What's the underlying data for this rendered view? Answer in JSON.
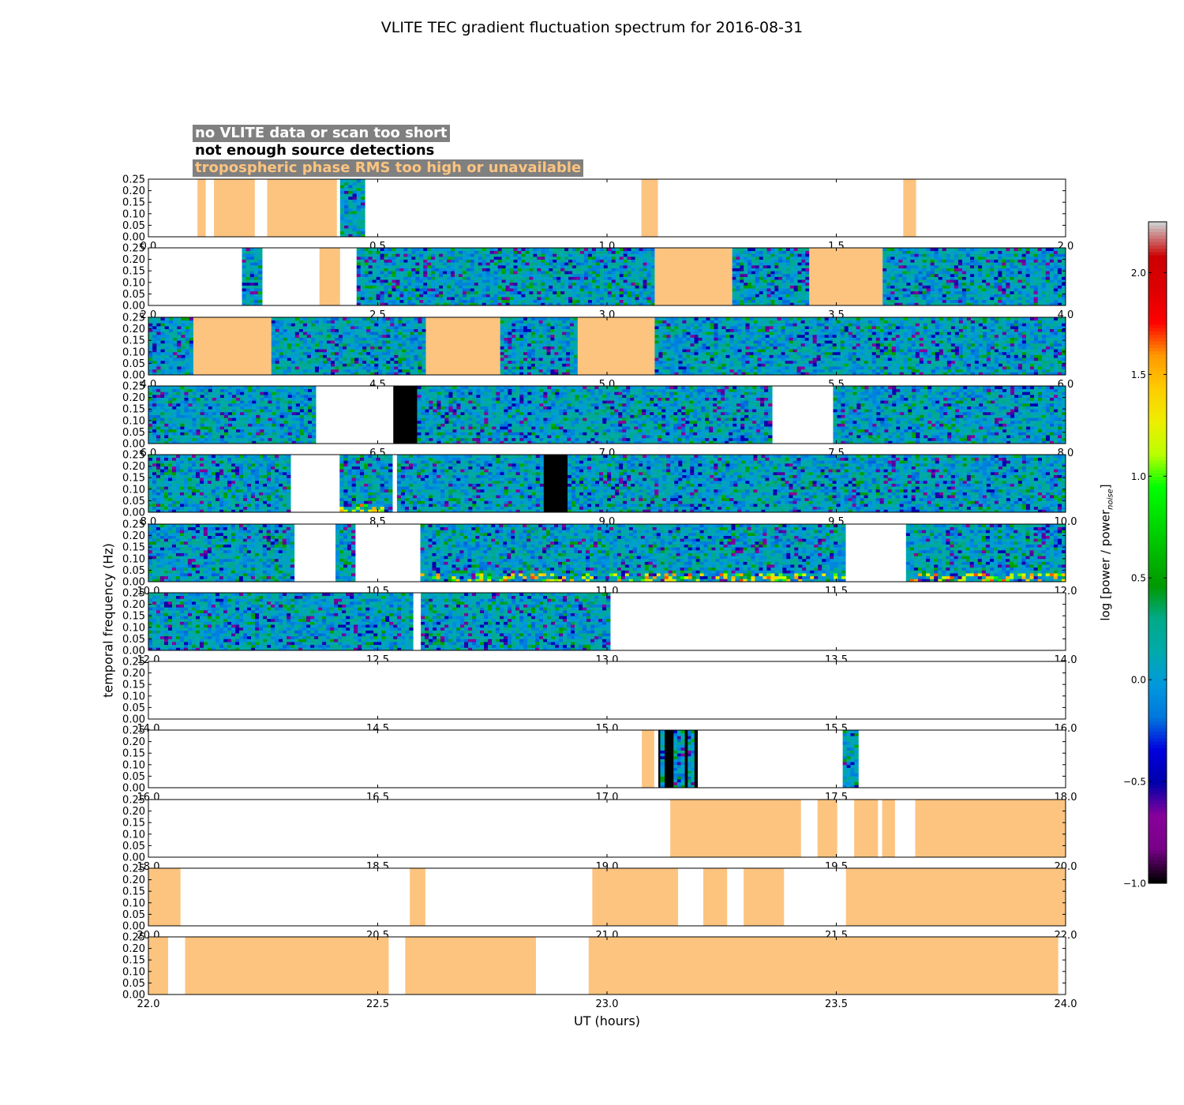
{
  "chart_data": {
    "type": "heatmap",
    "title": "VLITE TEC gradient fluctuation spectrum for 2016-08-31",
    "xlabel": "UT (hours)",
    "ylabel": "temporal frequency (Hz)",
    "colorbar": {
      "label": "log [power / power",
      "label_sub": "noise",
      "label_end": "]",
      "range": [
        -1.0,
        2.25
      ],
      "ticks": [
        "−1.0",
        "−0.5",
        "0.0",
        "0.5",
        "1.0",
        "1.5",
        "2.0"
      ],
      "tick_values": [
        -1.0,
        -0.5,
        0.0,
        0.5,
        1.0,
        1.5,
        2.0
      ],
      "colormap": "nipy_spectral"
    },
    "legend": [
      {
        "text": "no VLITE data or scan too short",
        "color": "#ffffff",
        "background": "#808080"
      },
      {
        "text": "not enough source detections",
        "color": "#000000",
        "background": "#ffffff"
      },
      {
        "text": "tropospheric phase RMS too high or unavailable",
        "color": "#fdc47f",
        "background": "#808080"
      }
    ],
    "category_colors": {
      "no_data": "#ffffff",
      "no_detections": "#000000",
      "troposphere": "#fdc47f"
    },
    "ylim": [
      0.0,
      0.25
    ],
    "yticks": [
      "0.00",
      "0.05",
      "0.10",
      "0.15",
      "0.20",
      "0.25"
    ],
    "panels": [
      {
        "xlim": [
          0.0,
          2.0
        ],
        "xticks": [
          "0.0",
          "0.5",
          "1.0",
          "1.5",
          "2.0"
        ],
        "segments": [
          {
            "start": 0.107,
            "end": 0.125,
            "kind": "troposphere"
          },
          {
            "start": 0.143,
            "end": 0.232,
            "kind": "troposphere"
          },
          {
            "start": 0.259,
            "end": 0.411,
            "kind": "troposphere"
          },
          {
            "start": 0.418,
            "end": 0.472,
            "kind": "spectrum"
          },
          {
            "start": 1.075,
            "end": 1.111,
            "kind": "troposphere"
          },
          {
            "start": 1.646,
            "end": 1.674,
            "kind": "troposphere"
          }
        ]
      },
      {
        "xlim": [
          2.0,
          4.0
        ],
        "xticks": [
          "2.0",
          "2.5",
          "3.0",
          "3.5",
          "4.0"
        ],
        "segments": [
          {
            "start": 2.204,
            "end": 2.248,
            "kind": "spectrum"
          },
          {
            "start": 2.373,
            "end": 2.418,
            "kind": "troposphere"
          },
          {
            "start": 2.454,
            "end": 3.104,
            "kind": "spectrum"
          },
          {
            "start": 3.104,
            "end": 3.273,
            "kind": "troposphere"
          },
          {
            "start": 3.273,
            "end": 3.441,
            "kind": "spectrum"
          },
          {
            "start": 3.441,
            "end": 3.601,
            "kind": "troposphere"
          },
          {
            "start": 3.601,
            "end": 4.0,
            "kind": "spectrum"
          }
        ]
      },
      {
        "xlim": [
          4.0,
          6.0
        ],
        "xticks": [
          "4.0",
          "4.5",
          "5.0",
          "5.5",
          "6.0"
        ],
        "segments": [
          {
            "start": 4.0,
            "end": 4.098,
            "kind": "spectrum"
          },
          {
            "start": 4.098,
            "end": 4.268,
            "kind": "troposphere"
          },
          {
            "start": 4.268,
            "end": 4.605,
            "kind": "spectrum"
          },
          {
            "start": 4.605,
            "end": 4.767,
            "kind": "troposphere"
          },
          {
            "start": 4.767,
            "end": 4.936,
            "kind": "spectrum"
          },
          {
            "start": 4.936,
            "end": 5.104,
            "kind": "troposphere"
          },
          {
            "start": 5.104,
            "end": 6.0,
            "kind": "spectrum"
          }
        ]
      },
      {
        "xlim": [
          6.0,
          8.0
        ],
        "xticks": [
          "6.0",
          "6.5",
          "7.0",
          "7.5",
          "8.0"
        ],
        "segments": [
          {
            "start": 6.0,
            "end": 6.365,
            "kind": "spectrum"
          },
          {
            "start": 6.534,
            "end": 6.586,
            "kind": "no_detections"
          },
          {
            "start": 6.586,
            "end": 7.36,
            "kind": "spectrum"
          },
          {
            "start": 7.493,
            "end": 8.0,
            "kind": "spectrum"
          }
        ]
      },
      {
        "xlim": [
          8.0,
          10.0
        ],
        "xticks": [
          "8.0",
          "8.5",
          "9.0",
          "9.5",
          "10.0"
        ],
        "segments": [
          {
            "start": 8.0,
            "end": 8.31,
            "kind": "spectrum"
          },
          {
            "start": 8.417,
            "end": 8.532,
            "kind": "spectrum",
            "hot": true
          },
          {
            "start": 8.542,
            "end": 8.862,
            "kind": "spectrum"
          },
          {
            "start": 8.862,
            "end": 8.914,
            "kind": "no_detections"
          },
          {
            "start": 8.914,
            "end": 10.0,
            "kind": "spectrum"
          }
        ]
      },
      {
        "xlim": [
          10.0,
          12.0
        ],
        "xticks": [
          "10.0",
          "10.5",
          "11.0",
          "11.5",
          "12.0"
        ],
        "segments": [
          {
            "start": 10.0,
            "end": 10.318,
            "kind": "spectrum"
          },
          {
            "start": 10.408,
            "end": 10.451,
            "kind": "spectrum"
          },
          {
            "start": 10.593,
            "end": 11.52,
            "kind": "spectrum",
            "hot": true
          },
          {
            "start": 11.652,
            "end": 12.0,
            "kind": "spectrum",
            "hot": true
          }
        ]
      },
      {
        "xlim": [
          12.0,
          14.0
        ],
        "xticks": [
          "12.0",
          "12.5",
          "13.0",
          "13.5",
          "14.0"
        ],
        "segments": [
          {
            "start": 12.0,
            "end": 12.577,
            "kind": "spectrum"
          },
          {
            "start": 12.594,
            "end": 13.007,
            "kind": "spectrum"
          }
        ]
      },
      {
        "xlim": [
          14.0,
          16.0
        ],
        "xticks": [
          "14.0",
          "14.5",
          "15.0",
          "15.5",
          "16.0"
        ],
        "segments": []
      },
      {
        "xlim": [
          16.0,
          18.0
        ],
        "xticks": [
          "16.0",
          "16.5",
          "17.0",
          "17.5",
          "18.0"
        ],
        "segments": [
          {
            "start": 17.076,
            "end": 17.103,
            "kind": "troposphere"
          },
          {
            "start": 17.112,
            "end": 17.198,
            "kind": "no_detections"
          },
          {
            "start": 17.116,
            "end": 17.125,
            "kind": "spectrum"
          },
          {
            "start": 17.145,
            "end": 17.169,
            "kind": "spectrum"
          },
          {
            "start": 17.176,
            "end": 17.19,
            "kind": "spectrum"
          },
          {
            "start": 17.514,
            "end": 17.548,
            "kind": "spectrum"
          }
        ]
      },
      {
        "xlim": [
          18.0,
          20.0
        ],
        "xticks": [
          "18.0",
          "18.5",
          "19.0",
          "19.5",
          "20.0"
        ],
        "segments": [
          {
            "start": 19.138,
            "end": 19.423,
            "kind": "troposphere"
          },
          {
            "start": 19.459,
            "end": 19.502,
            "kind": "troposphere"
          },
          {
            "start": 19.539,
            "end": 19.591,
            "kind": "troposphere"
          },
          {
            "start": 19.6,
            "end": 19.628,
            "kind": "troposphere"
          },
          {
            "start": 19.672,
            "end": 20.0,
            "kind": "troposphere"
          }
        ]
      },
      {
        "xlim": [
          20.0,
          22.0
        ],
        "xticks": [
          "20.0",
          "20.5",
          "21.0",
          "21.5",
          "22.0"
        ],
        "segments": [
          {
            "start": 20.0,
            "end": 20.07,
            "kind": "troposphere"
          },
          {
            "start": 20.57,
            "end": 20.604,
            "kind": "troposphere"
          },
          {
            "start": 20.968,
            "end": 21.155,
            "kind": "troposphere"
          },
          {
            "start": 21.21,
            "end": 21.262,
            "kind": "troposphere"
          },
          {
            "start": 21.298,
            "end": 21.386,
            "kind": "troposphere"
          },
          {
            "start": 21.521,
            "end": 22.0,
            "kind": "troposphere"
          }
        ]
      },
      {
        "xlim": [
          22.0,
          24.0
        ],
        "xticks": [
          "22.0",
          "22.5",
          "23.0",
          "23.5",
          "24.0"
        ],
        "segments": [
          {
            "start": 22.0,
            "end": 22.043,
            "kind": "troposphere"
          },
          {
            "start": 22.08,
            "end": 22.524,
            "kind": "troposphere"
          },
          {
            "start": 22.56,
            "end": 22.845,
            "kind": "troposphere"
          },
          {
            "start": 22.96,
            "end": 23.984,
            "kind": "troposphere"
          }
        ]
      }
    ]
  }
}
